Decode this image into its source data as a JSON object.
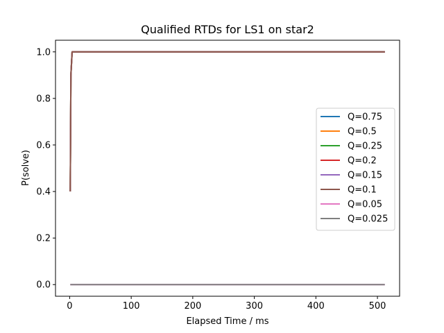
{
  "chart_data": {
    "type": "line",
    "title": "Qualified RTDs for LS1 on star2",
    "xlabel": "Elapsed Time / ms",
    "ylabel": "P(solve)",
    "xlim": [
      -23,
      536
    ],
    "ylim": [
      -0.05,
      1.05
    ],
    "xticks": [
      0,
      100,
      200,
      300,
      400,
      500
    ],
    "yticks": [
      0.0,
      0.2,
      0.4,
      0.6,
      0.8,
      1.0
    ],
    "xtick_labels": [
      "0",
      "100",
      "200",
      "300",
      "400",
      "500"
    ],
    "ytick_labels": [
      "0.0",
      "0.2",
      "0.4",
      "0.6",
      "0.8",
      "1.0"
    ],
    "grid": false,
    "legend_position": "center-right",
    "series": [
      {
        "name": "Q=0.75",
        "color": "#1f77b4",
        "x": [
          1,
          2,
          4,
          512
        ],
        "y": [
          0.4,
          0.9,
          1.0,
          1.0
        ]
      },
      {
        "name": "Q=0.5",
        "color": "#ff7f0e",
        "x": [
          1,
          2,
          4,
          512
        ],
        "y": [
          0.4,
          0.9,
          1.0,
          1.0
        ]
      },
      {
        "name": "Q=0.25",
        "color": "#2ca02c",
        "x": [
          1,
          2,
          4,
          512
        ],
        "y": [
          0.4,
          0.9,
          1.0,
          1.0
        ]
      },
      {
        "name": "Q=0.2",
        "color": "#d62728",
        "x": [
          1,
          2,
          4,
          512
        ],
        "y": [
          0.4,
          0.9,
          1.0,
          1.0
        ]
      },
      {
        "name": "Q=0.15",
        "color": "#9467bd",
        "x": [
          1,
          2,
          4,
          512
        ],
        "y": [
          0.4,
          0.9,
          1.0,
          1.0
        ]
      },
      {
        "name": "Q=0.1",
        "color": "#8c564b",
        "x": [
          1,
          2,
          4,
          512
        ],
        "y": [
          0.4,
          0.9,
          1.0,
          1.0
        ]
      },
      {
        "name": "Q=0.05",
        "color": "#e377c2",
        "x": [
          1,
          512
        ],
        "y": [
          0.0,
          0.0
        ]
      },
      {
        "name": "Q=0.025",
        "color": "#7f7f7f",
        "x": [
          1,
          512
        ],
        "y": [
          0.0,
          0.0
        ]
      }
    ]
  }
}
